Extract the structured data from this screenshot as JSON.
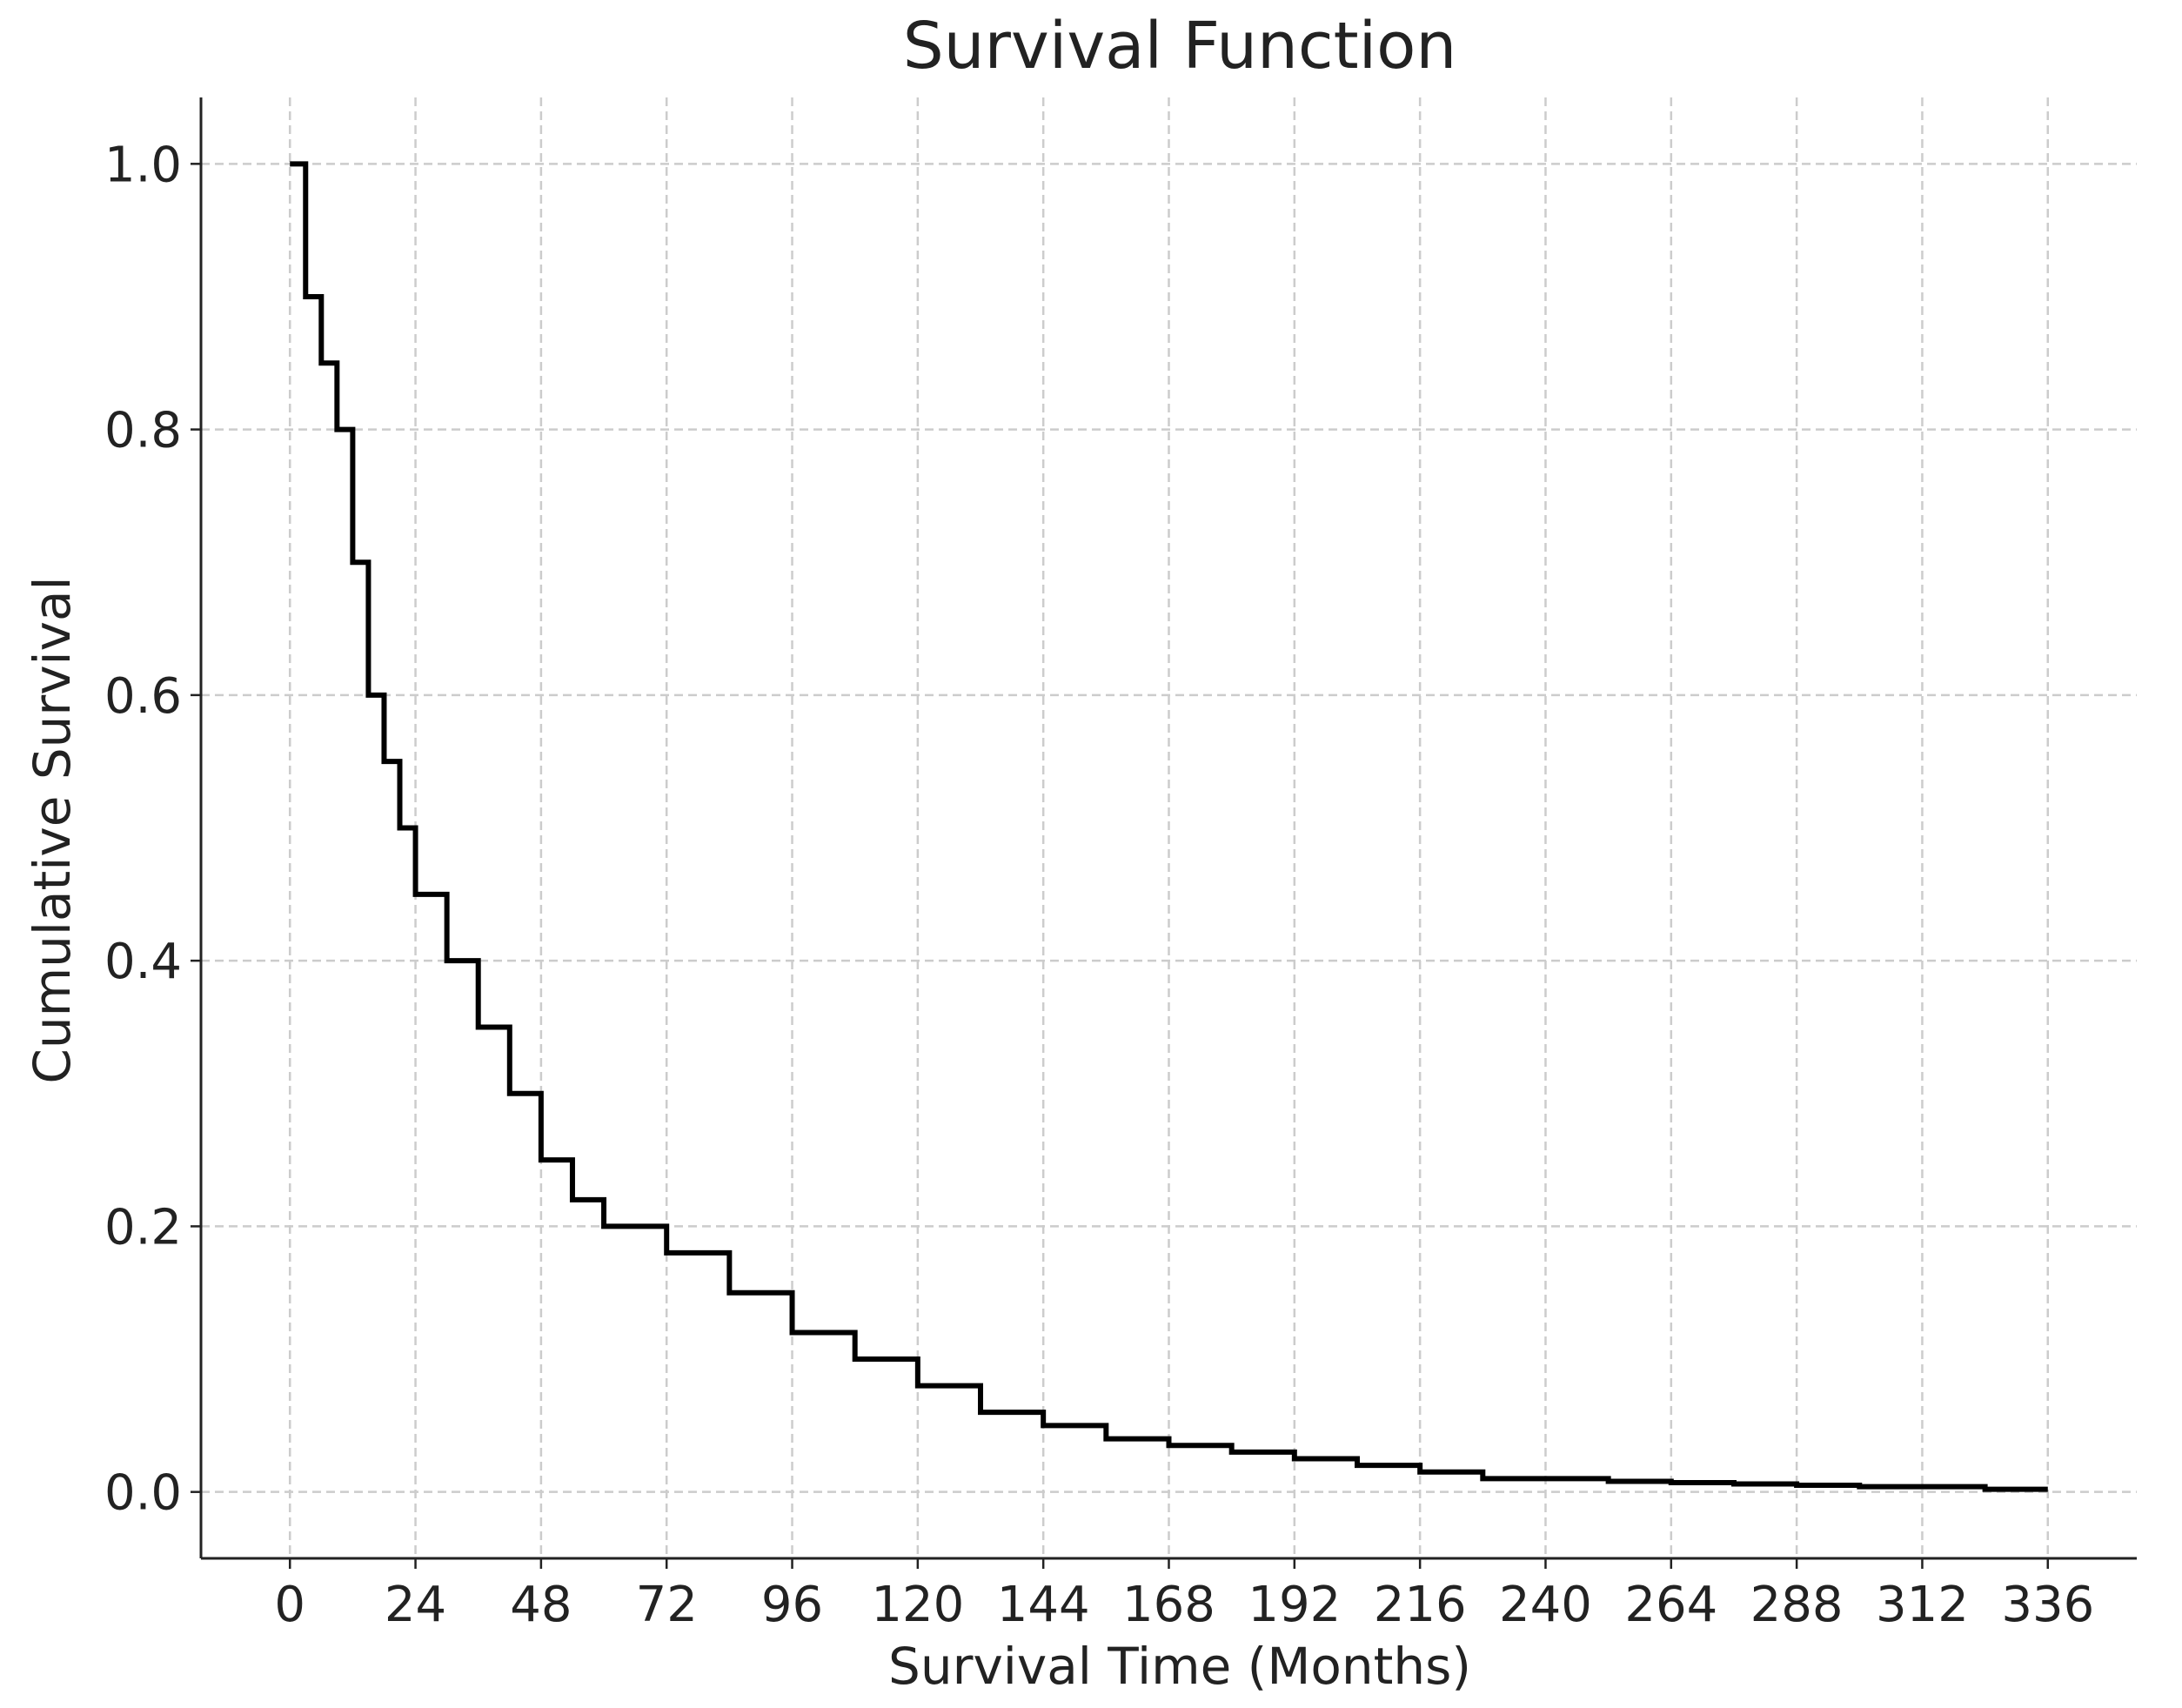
{
  "chart_data": {
    "type": "line",
    "step": "post",
    "title": "Survival Function",
    "xlabel": "Survival Time (Months)",
    "ylabel": "Cumulative Survival",
    "xlim": [
      -17,
      353
    ],
    "ylim": [
      -0.05,
      1.05
    ],
    "xticks": [
      0,
      24,
      48,
      72,
      96,
      120,
      144,
      168,
      192,
      216,
      240,
      264,
      288,
      312,
      336
    ],
    "yticks": [
      0.0,
      0.2,
      0.4,
      0.6,
      0.8,
      1.0
    ],
    "ytick_labels": [
      "0.0",
      "0.2",
      "0.4",
      "0.6",
      "0.8",
      "1.0"
    ],
    "grid": true,
    "line_color": "#000000",
    "grid_color": "#cccccc",
    "series": [
      {
        "x": [
          0,
          3,
          6,
          9,
          12,
          15,
          18,
          21,
          24,
          30,
          36,
          42,
          48,
          54,
          60,
          72,
          84,
          96,
          108,
          120,
          132,
          144,
          156,
          168,
          180,
          192,
          204,
          216,
          228,
          252,
          264,
          276,
          288,
          300,
          324,
          336
        ],
        "y": [
          1.0,
          0.9,
          0.85,
          0.8,
          0.7,
          0.6,
          0.55,
          0.5,
          0.45,
          0.4,
          0.35,
          0.3,
          0.25,
          0.22,
          0.2,
          0.18,
          0.15,
          0.12,
          0.1,
          0.08,
          0.06,
          0.05,
          0.04,
          0.035,
          0.03,
          0.025,
          0.02,
          0.015,
          0.01,
          0.008,
          0.007,
          0.006,
          0.005,
          0.004,
          0.002,
          0.002
        ]
      }
    ]
  }
}
